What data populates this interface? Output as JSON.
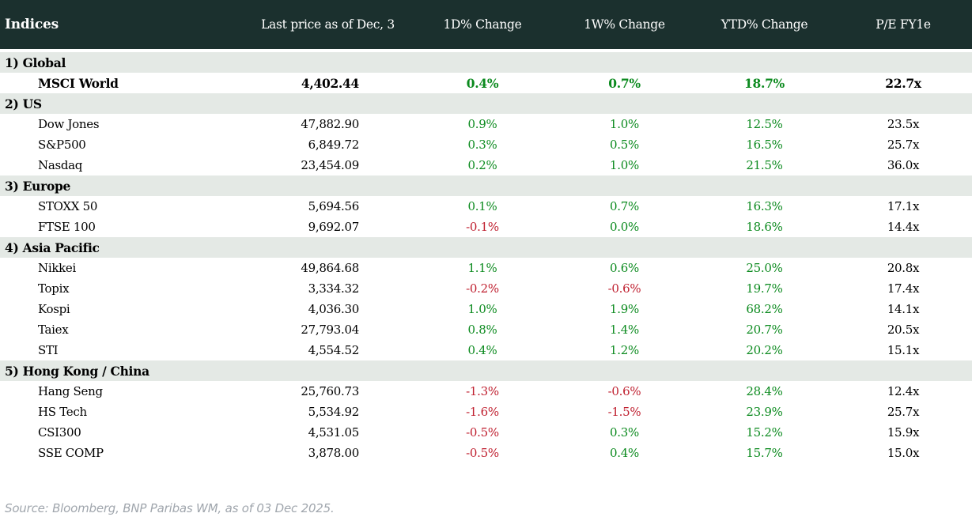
{
  "chart_data": {
    "type": "table",
    "title": "Indices",
    "columns": [
      "Indices",
      "Last price as of Dec, 3",
      "1D% Change",
      "1W% Change",
      "YTD% Change",
      "P/E FY1e"
    ],
    "sections": [
      {
        "label": "1) Global",
        "rows": [
          [
            "MSCI World",
            "4,402.44",
            "0.4%",
            "0.7%",
            "18.7%",
            "22.7x"
          ]
        ]
      },
      {
        "label": "2) US",
        "rows": [
          [
            "Dow Jones",
            "47,882.90",
            "0.9%",
            "1.0%",
            "12.5%",
            "23.5x"
          ],
          [
            "S&P500",
            "6,849.72",
            "0.3%",
            "0.5%",
            "16.5%",
            "25.7x"
          ],
          [
            "Nasdaq",
            "23,454.09",
            "0.2%",
            "1.0%",
            "21.5%",
            "36.0x"
          ]
        ]
      },
      {
        "label": "3) Europe",
        "rows": [
          [
            "STOXX 50",
            "5,694.56",
            "0.1%",
            "0.7%",
            "16.3%",
            "17.1x"
          ],
          [
            "FTSE 100",
            "9,692.07",
            "-0.1%",
            "0.0%",
            "18.6%",
            "14.4x"
          ]
        ]
      },
      {
        "label": "4) Asia Pacific",
        "rows": [
          [
            "Nikkei",
            "49,864.68",
            "1.1%",
            "0.6%",
            "25.0%",
            "20.8x"
          ],
          [
            "Topix",
            "3,334.32",
            "-0.2%",
            "-0.6%",
            "19.7%",
            "17.4x"
          ],
          [
            "Kospi",
            "4,036.30",
            "1.0%",
            "1.9%",
            "68.2%",
            "14.1x"
          ],
          [
            "Taiex",
            "27,793.04",
            "0.8%",
            "1.4%",
            "20.7%",
            "20.5x"
          ],
          [
            "STI",
            "4,554.52",
            "0.4%",
            "1.2%",
            "20.2%",
            "15.1x"
          ]
        ]
      },
      {
        "label": "5) Hong Kong / China",
        "rows": [
          [
            "Hang Seng",
            "25,760.73",
            "-1.3%",
            "-0.6%",
            "28.4%",
            "12.4x"
          ],
          [
            "HS Tech",
            "5,534.92",
            "-1.6%",
            "-1.5%",
            "23.9%",
            "25.7x"
          ],
          [
            "CSI300",
            "4,531.05",
            "-0.5%",
            "0.3%",
            "15.2%",
            "15.9x"
          ],
          [
            "SSE COMP",
            "3,878.00",
            "-0.5%",
            "0.4%",
            "15.7%",
            "15.0x"
          ]
        ]
      }
    ],
    "highlight_row": "MSCI World",
    "legend_position": "none",
    "grid": false,
    "footer": "Source: Bloomberg, BNP Paribas WM, as of 03 Dec 2025.",
    "colors": {
      "header_bg": "#1b302e",
      "header_text": "#ffffff",
      "section_bg": "#e4e9e5",
      "positive": "#0b8a1e",
      "negative": "#bf1e2e",
      "text": "#000000",
      "source_text": "#a0a6ad"
    }
  }
}
